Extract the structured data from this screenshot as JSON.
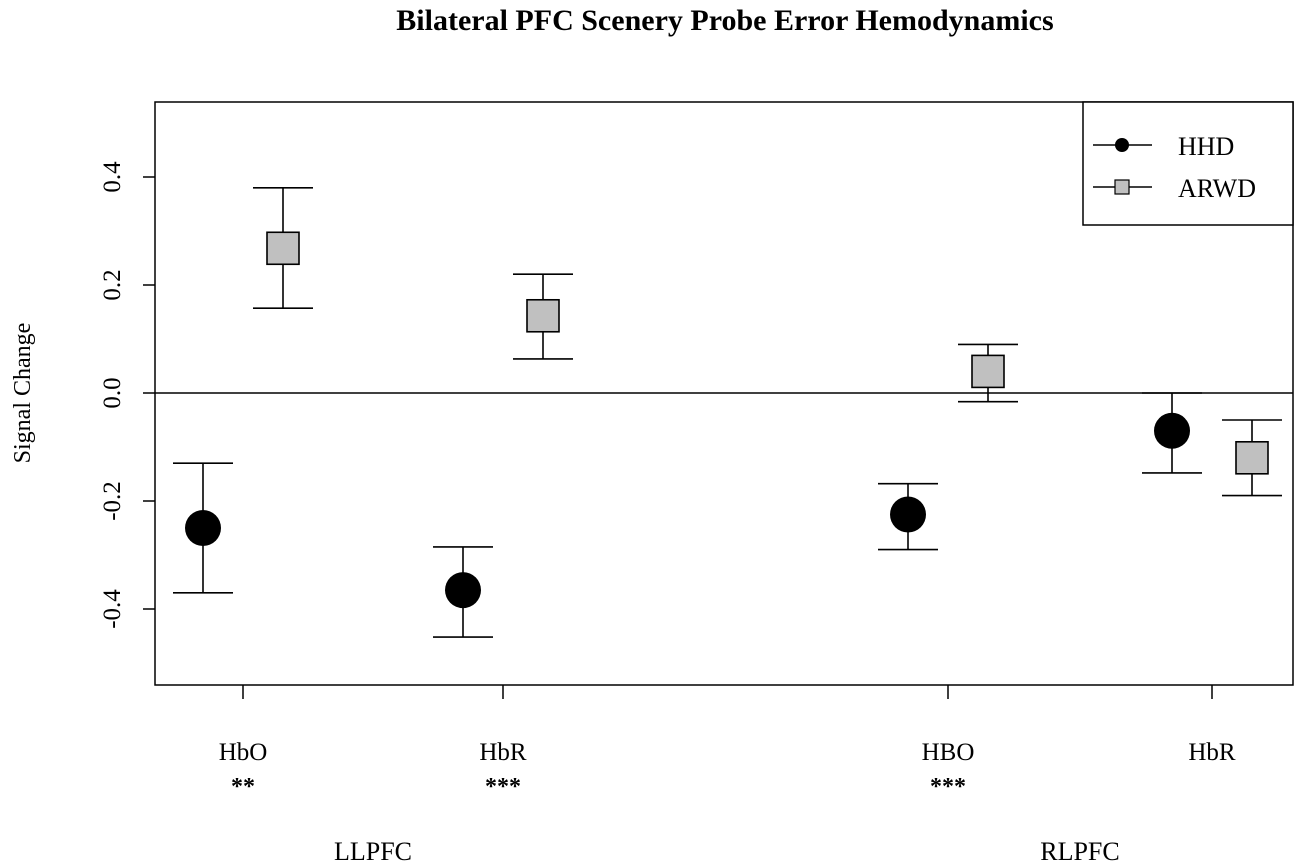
{
  "chart_data": {
    "type": "scatter",
    "title": "Bilateral PFC Scenery Probe Error Hemodynamics",
    "ylabel": "Signal Change",
    "ylim": [
      -0.54,
      0.54
    ],
    "yticks": [
      -0.4,
      -0.2,
      0.0,
      0.2,
      0.4
    ],
    "ytick_labels": [
      "-0.4",
      "-0.2",
      "0.0",
      "0.2",
      "0.4"
    ],
    "categories": [
      "HbO",
      "HbR",
      "HBO",
      "HbR"
    ],
    "significance": [
      "**",
      "***",
      "***",
      ""
    ],
    "regions": [
      "LLPFC",
      "RLPFC"
    ],
    "legend_position": "top-right",
    "series": [
      {
        "name": "HHD",
        "marker": "circle",
        "color": "#000000",
        "values": [
          -0.25,
          -0.365,
          -0.225,
          -0.07
        ],
        "err_low": [
          -0.37,
          -0.452,
          -0.29,
          -0.148
        ],
        "err_high": [
          -0.13,
          -0.285,
          -0.168,
          0.0
        ]
      },
      {
        "name": "ARWD",
        "marker": "square",
        "color": "#c0c0c0",
        "values": [
          0.268,
          0.143,
          0.04,
          -0.12
        ],
        "err_low": [
          0.157,
          0.063,
          -0.016,
          -0.19
        ],
        "err_high": [
          0.38,
          0.22,
          0.09,
          -0.05
        ]
      }
    ]
  }
}
